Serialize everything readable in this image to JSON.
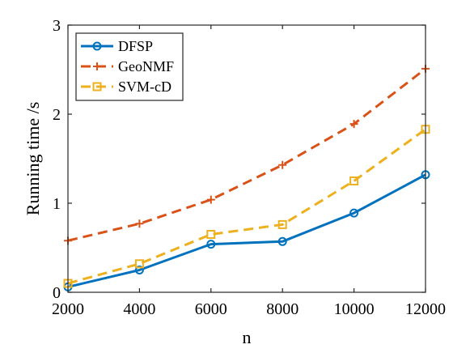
{
  "chart_data": {
    "type": "line",
    "xlabel": "n",
    "ylabel": "Running time /s",
    "xlim": [
      2000,
      12000
    ],
    "ylim": [
      0,
      3
    ],
    "xticks": [
      2000,
      4000,
      6000,
      8000,
      10000,
      12000
    ],
    "yticks": [
      0,
      1,
      2,
      3
    ],
    "x": [
      2000,
      4000,
      6000,
      8000,
      10000,
      12000
    ],
    "grid": false,
    "legend_position": "top-left",
    "series": [
      {
        "name": "DFSP",
        "color": "#0072BD",
        "line_style": "solid",
        "marker": "circle",
        "values": [
          0.06,
          0.25,
          0.54,
          0.57,
          0.89,
          1.32
        ]
      },
      {
        "name": "GeoNMF",
        "color": "#D95319",
        "line_style": "dashed",
        "marker": "plus",
        "values": [
          0.58,
          0.77,
          1.04,
          1.43,
          1.89,
          2.51
        ]
      },
      {
        "name": "SVM-cD",
        "color": "#EDB120",
        "line_style": "dashed",
        "marker": "square",
        "values": [
          0.1,
          0.32,
          0.65,
          0.76,
          1.25,
          1.83
        ]
      }
    ]
  }
}
